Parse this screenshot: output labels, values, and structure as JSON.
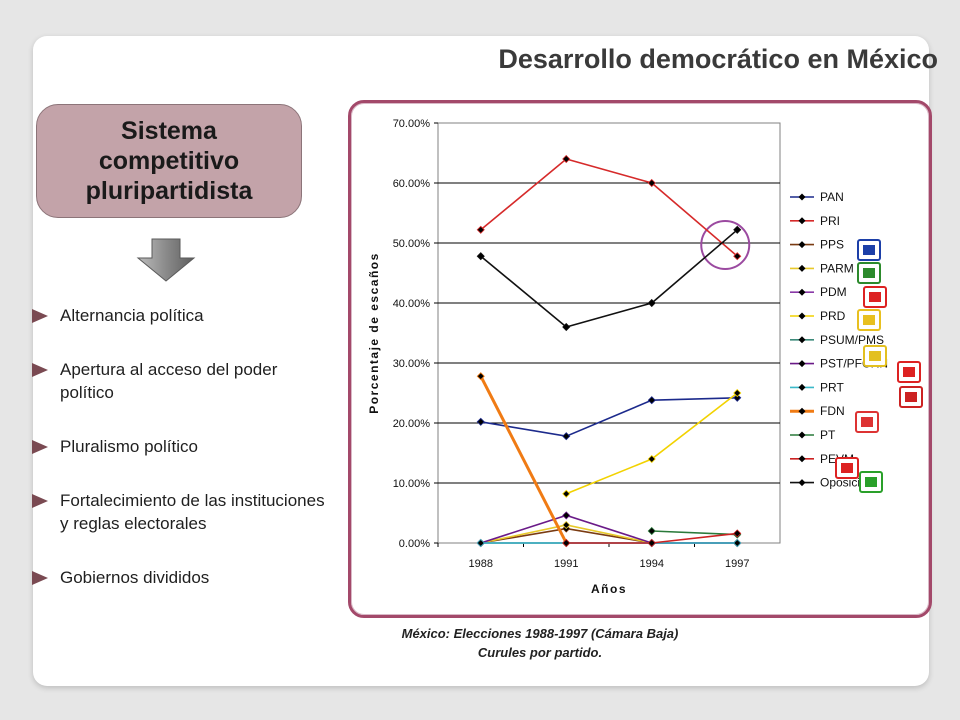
{
  "slide": {
    "title": "Desarrollo democrático en México",
    "system_box": "Sistema competitivo pluripartidista",
    "bullets": [
      "Alternancia política",
      "Apertura al acceso del poder político",
      "Pluralismo político",
      "Fortalecimiento de las instituciones  y reglas electorales",
      "Gobiernos divididos"
    ],
    "caption_line1": "México: Elecciones 1988-1997 (Cámara Baja)",
    "caption_line2": "Curules por partido."
  },
  "colors": {
    "box_fill": "#c3a3a9",
    "frame_border": "#a3496a",
    "bullet_marker": "#7a4a52",
    "highlight_circle": "#9b4aa0"
  },
  "chart_data": {
    "type": "line",
    "categories": [
      "1988",
      "1991",
      "1994",
      "1997"
    ],
    "xlabel": "Años",
    "ylabel": "Porcentaje de escaños",
    "ylim": [
      0,
      70
    ],
    "yticks": [
      "0.00%",
      "10.00%",
      "20.00%",
      "30.00%",
      "40.00%",
      "50.00%",
      "60.00%",
      "70.00%"
    ],
    "grid": true,
    "legend_position": "right",
    "series": [
      {
        "name": "PAN",
        "color": "#1c2a8c",
        "values": [
          20.2,
          17.8,
          23.8,
          24.2
        ]
      },
      {
        "name": "PRI",
        "color": "#d62a2a",
        "values": [
          52.2,
          64.0,
          60.0,
          47.8
        ]
      },
      {
        "name": "PPS",
        "color": "#7a3b12",
        "values": [
          0,
          2.4,
          0,
          0
        ]
      },
      {
        "name": "PARM",
        "color": "#e8c92a",
        "values": [
          0,
          3.0,
          0,
          0
        ]
      },
      {
        "name": "PDM",
        "color": "#8a3aa8",
        "values": [
          0,
          0,
          0,
          0
        ]
      },
      {
        "name": "PRD",
        "color": "#f2d200",
        "values": [
          null,
          8.2,
          14.0,
          25.0
        ]
      },
      {
        "name": "PSUM/PMS",
        "color": "#3c8a7a",
        "values": [
          0,
          0,
          0,
          0
        ]
      },
      {
        "name": "PST/PFCRN",
        "color": "#6a1a88",
        "values": [
          0,
          4.6,
          0,
          0
        ]
      },
      {
        "name": "PRT",
        "color": "#3bb9c9",
        "values": [
          0,
          0,
          0,
          0
        ]
      },
      {
        "name": "FDN",
        "color": "#f07b14",
        "values": [
          27.8,
          0,
          null,
          null
        ]
      },
      {
        "name": "PT",
        "color": "#2a7a3a",
        "values": [
          null,
          null,
          2.0,
          1.4
        ]
      },
      {
        "name": "PEVM",
        "color": "#cc2222",
        "values": [
          null,
          0,
          0,
          1.6
        ]
      },
      {
        "name": "Oposición",
        "color": "#111111",
        "values": [
          47.8,
          36.0,
          40.0,
          52.2
        ]
      }
    ]
  }
}
